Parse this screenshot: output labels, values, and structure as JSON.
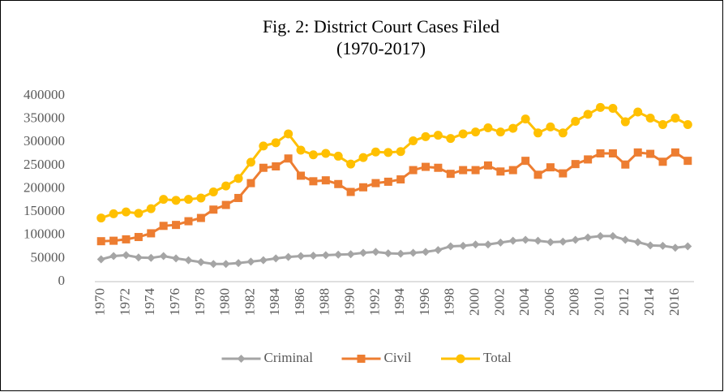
{
  "chart_data": {
    "type": "line",
    "title": "Fig. 2: District Court Cases Filed",
    "subtitle": "(1970-2017)",
    "categories": [
      "1970",
      null,
      "1972",
      null,
      "1974",
      null,
      "1976",
      null,
      "1978",
      null,
      "1980",
      null,
      "1982",
      null,
      "1984",
      null,
      "1986",
      null,
      "1988",
      null,
      "1990",
      null,
      "1992",
      null,
      "1994",
      null,
      "1996",
      null,
      "1998",
      null,
      "2000",
      null,
      "2002",
      null,
      "2004",
      null,
      "2006",
      null,
      "2008",
      null,
      "2010",
      null,
      "2012",
      null,
      "2014",
      null,
      "2016",
      null
    ],
    "series": [
      {
        "name": "Criminal",
        "color": "#a5a5a5",
        "marker": "diamond",
        "values": [
          48000,
          55000,
          57000,
          52000,
          51000,
          55000,
          50000,
          46000,
          42000,
          38000,
          38000,
          40000,
          43000,
          46000,
          50000,
          53000,
          55000,
          56000,
          57000,
          58000,
          59000,
          62000,
          64000,
          61000,
          60000,
          62000,
          64000,
          68000,
          76000,
          77000,
          80000,
          80000,
          84000,
          88000,
          90000,
          88000,
          85000,
          86000,
          90000,
          95000,
          98000,
          98000,
          90000,
          85000,
          78000,
          77000,
          73000,
          76000
        ]
      },
      {
        "name": "Civil",
        "color": "#ed7d31",
        "marker": "square",
        "values": [
          87000,
          88000,
          91000,
          96000,
          104000,
          120000,
          122000,
          130000,
          137000,
          155000,
          165000,
          180000,
          212000,
          245000,
          248000,
          265000,
          228000,
          216000,
          218000,
          210000,
          193000,
          203000,
          212000,
          215000,
          220000,
          240000,
          247000,
          245000,
          232000,
          240000,
          240000,
          250000,
          237000,
          240000,
          260000,
          230000,
          246000,
          233000,
          253000,
          263000,
          276000,
          276000,
          252000,
          278000,
          275000,
          258000,
          278000,
          260000
        ]
      },
      {
        "name": "Total",
        "color": "#ffc000",
        "marker": "circle",
        "values": [
          137000,
          146000,
          150000,
          147000,
          157000,
          177000,
          175000,
          177000,
          180000,
          193000,
          206000,
          222000,
          257000,
          292000,
          299000,
          318000,
          283000,
          273000,
          276000,
          270000,
          253000,
          267000,
          279000,
          278000,
          280000,
          303000,
          312000,
          315000,
          308000,
          318000,
          322000,
          331000,
          322000,
          330000,
          350000,
          320000,
          333000,
          320000,
          345000,
          360000,
          375000,
          373000,
          344000,
          365000,
          352000,
          338000,
          352000,
          338000
        ]
      }
    ],
    "ylim": [
      0,
      400000
    ],
    "yticks": [
      0,
      50000,
      100000,
      150000,
      200000,
      250000,
      300000,
      350000,
      400000
    ],
    "grid": false,
    "legend": "bottom"
  }
}
